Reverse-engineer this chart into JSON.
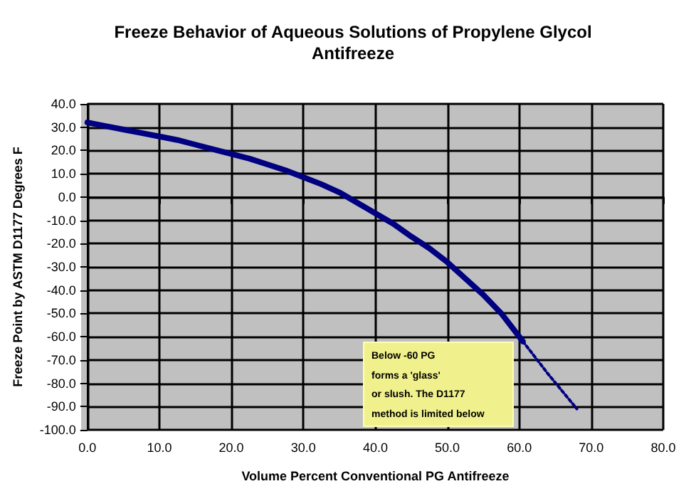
{
  "chart_data": {
    "type": "line",
    "title": "Freeze Behavior of Aqueous Solutions of Propylene Glycol\nAntifreeze",
    "xlabel": "Volume Percent Conventional PG Antifreeze",
    "ylabel": "Freeze Point by ASTM D1177 Degrees F",
    "annotations": [
      "Below -60 PG\nforms a 'glass'\nor slush. The D1177\nmethod is limited below"
    ],
    "series": [
      {
        "color": "#000080",
        "line_style": "solid",
        "x": [
          0,
          2.5,
          5,
          7.5,
          10,
          12.5,
          15,
          17.5,
          20,
          22.5,
          25,
          27.5,
          30,
          32.5,
          35,
          37.5,
          40,
          42.5,
          45,
          47.5,
          50,
          52.5,
          55,
          57.5,
          60.5
        ],
        "values": [
          32,
          30.5,
          29,
          27.5,
          26,
          24.5,
          22.5,
          20.5,
          18.5,
          16.5,
          14,
          11.5,
          8.5,
          5.5,
          2,
          -2.5,
          -7,
          -11.5,
          -17,
          -22,
          -28,
          -35,
          -42,
          -50,
          -62
        ]
      },
      {
        "color": "#000080",
        "line_style": "dotted",
        "x": [
          60.5,
          64,
          68
        ],
        "values": [
          -62,
          -76,
          -91
        ]
      }
    ],
    "xlim": [
      0,
      80
    ],
    "xticks": [
      {
        "value": 0,
        "label": "0.0"
      },
      {
        "value": 10,
        "label": "10.0"
      },
      {
        "value": 20,
        "label": "20.0"
      },
      {
        "value": 30,
        "label": "30.0"
      },
      {
        "value": 40,
        "label": "40.0"
      },
      {
        "value": 50,
        "label": "50.0"
      },
      {
        "value": 60,
        "label": "60.0"
      },
      {
        "value": 70,
        "label": "70.0"
      },
      {
        "value": 80,
        "label": "80.0"
      }
    ],
    "ylim": [
      -100,
      40
    ],
    "yticks": [
      {
        "value": -100,
        "label": "-100.0"
      },
      {
        "value": -90,
        "label": "-90.0"
      },
      {
        "value": -80,
        "label": "-80.0"
      },
      {
        "value": -70,
        "label": "-70.0"
      },
      {
        "value": -60,
        "label": "-60.0"
      },
      {
        "value": -50,
        "label": "-50.0"
      },
      {
        "value": -40,
        "label": "-40.0"
      },
      {
        "value": -30,
        "label": "-30.0"
      },
      {
        "value": -20,
        "label": "-20.0"
      },
      {
        "value": -10,
        "label": "-10.0"
      },
      {
        "value": 0,
        "label": "0.0"
      },
      {
        "value": 10,
        "label": "10.0"
      },
      {
        "value": 20,
        "label": "20.0"
      },
      {
        "value": 30,
        "label": "30.0"
      },
      {
        "value": 40,
        "label": "40.0"
      }
    ],
    "grid": true
  }
}
